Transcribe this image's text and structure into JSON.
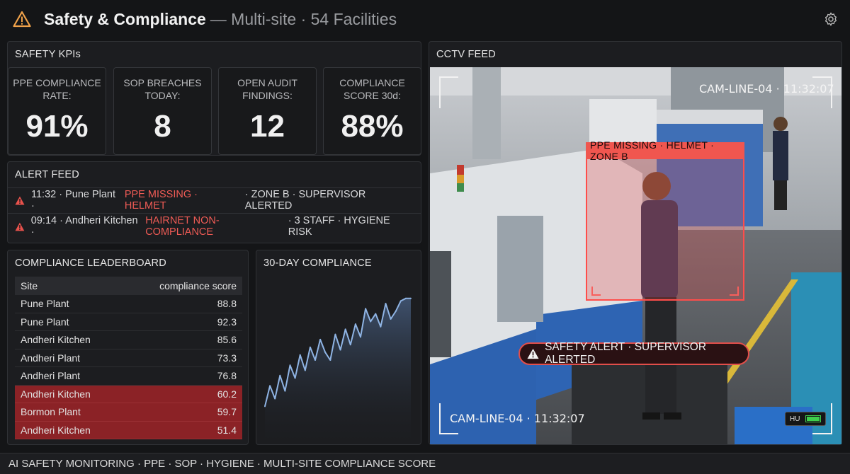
{
  "header": {
    "title": "Safety & Compliance",
    "subtitle": "— Multi-site · 54 Facilities",
    "warning_icon": "warning-triangle-icon",
    "settings_icon": "gear-icon"
  },
  "kpis": {
    "title": "SAFETY KPIs",
    "cards": [
      {
        "label": "PPE COMPLIANCE RATE:",
        "value": "91%"
      },
      {
        "label": "SOP BREACHES TODAY:",
        "value": "8"
      },
      {
        "label": "OPEN AUDIT FINDINGS:",
        "value": "12"
      },
      {
        "label": "COMPLIANCE SCORE 30d:",
        "value": "88%"
      }
    ]
  },
  "alerts": {
    "title": "ALERT FEED",
    "items": [
      {
        "time_site": "11:32 · Pune Plant ·",
        "issue": "PPE MISSING · HELMET",
        "detail": "· ZONE B · SUPERVISOR ALERTED"
      },
      {
        "time_site": "09:14 · Andheri Kitchen ·",
        "issue": "HAIRNET NON-COMPLIANCE",
        "detail": "· 3 STAFF · HYGIENE RISK"
      }
    ]
  },
  "leaderboard": {
    "title": "COMPLIANCE LEADERBOARD",
    "columns": [
      "Site",
      "compliance score"
    ],
    "rows": [
      {
        "site": "Pune Plant",
        "score": "88.8",
        "low": false
      },
      {
        "site": "Pune Plant",
        "score": "92.3",
        "low": false
      },
      {
        "site": "Andheri Kitchen",
        "score": "85.6",
        "low": false
      },
      {
        "site": "Andheri Plant",
        "score": "73.3",
        "low": false
      },
      {
        "site": "Andheri Plant",
        "score": "76.8",
        "low": false
      },
      {
        "site": "Andheri Kitchen",
        "score": "60.2",
        "low": true
      },
      {
        "site": "Bormon Plant",
        "score": "59.7",
        "low": true
      },
      {
        "site": "Andheri Kitchen",
        "score": "51.4",
        "low": true
      }
    ]
  },
  "chart_data": {
    "type": "area",
    "title": "30-DAY COMPLIANCE",
    "x": [
      1,
      2,
      3,
      4,
      5,
      6,
      7,
      8,
      9,
      10,
      11,
      12,
      13,
      14,
      15,
      16,
      17,
      18,
      19,
      20,
      21,
      22,
      23,
      24,
      25,
      26,
      27,
      28,
      29,
      30
    ],
    "values": [
      52,
      60,
      55,
      64,
      58,
      68,
      63,
      72,
      66,
      75,
      70,
      78,
      73,
      70,
      80,
      74,
      82,
      76,
      84,
      79,
      90,
      85,
      88,
      83,
      92,
      86,
      89,
      93,
      94,
      94
    ],
    "ylim": [
      40,
      100
    ],
    "line_color": "#8fb4e4"
  },
  "cctv": {
    "title": "CCTV FEED",
    "cam_top": "CAM-LINE-04 · 11:32:07",
    "cam_bottom": "CAM-LINE-04 · 11:32:07",
    "detection_label": "PPE MISSING · HELMET · ZONE B",
    "safety_alert": "SAFETY ALERT · SUPERVISOR ALERTED",
    "hud_badge": "HU"
  },
  "footer": {
    "text": "AI SAFETY MONITORING · PPE · SOP · HYGIENE · MULTI-SITE COMPLIANCE SCORE"
  },
  "colors": {
    "accent_orange": "#f0a24a",
    "alert_red": "#ef5b55",
    "low_score_row": "#8b2226"
  }
}
